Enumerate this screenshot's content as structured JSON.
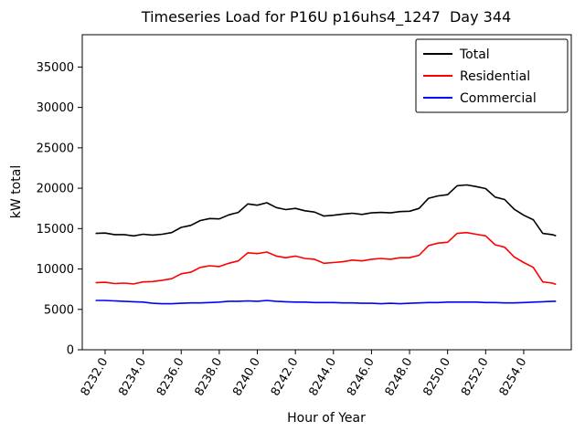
{
  "figure": {
    "background": "#ffffff",
    "axes_edge_color": "#000000"
  },
  "chart_data": {
    "type": "line",
    "title": "Timeseries Load for P16U p16uhs4_1247  Day 344",
    "xlabel": "Hour of Year",
    "ylabel": "kW total",
    "grid": false,
    "xlim": [
      8230.8,
      8256.5
    ],
    "ylim": [
      0,
      39000
    ],
    "x_ticks": [
      {
        "v": 8232,
        "label": "8232.0"
      },
      {
        "v": 8234,
        "label": "8234.0"
      },
      {
        "v": 8236,
        "label": "8236.0"
      },
      {
        "v": 8238,
        "label": "8238.0"
      },
      {
        "v": 8240,
        "label": "8240.0"
      },
      {
        "v": 8242,
        "label": "8242.0"
      },
      {
        "v": 8244,
        "label": "8244.0"
      },
      {
        "v": 8246,
        "label": "8246.0"
      },
      {
        "v": 8248,
        "label": "8248.0"
      },
      {
        "v": 8250,
        "label": "8250.0"
      },
      {
        "v": 8252,
        "label": "8252.0"
      },
      {
        "v": 8254,
        "label": "8254.0"
      }
    ],
    "y_ticks": [
      {
        "v": 0,
        "label": "0"
      },
      {
        "v": 5000,
        "label": "5000"
      },
      {
        "v": 10000,
        "label": "10000"
      },
      {
        "v": 15000,
        "label": "15000"
      },
      {
        "v": 20000,
        "label": "20000"
      },
      {
        "v": 25000,
        "label": "25000"
      },
      {
        "v": 30000,
        "label": "30000"
      },
      {
        "v": 35000,
        "label": "35000"
      }
    ],
    "legend": {
      "position": "upper right",
      "entries": [
        {
          "label": "Total",
          "color": "#000000"
        },
        {
          "label": "Residential",
          "color": "#ff0000"
        },
        {
          "label": "Commercial",
          "color": "#0000ff"
        }
      ]
    },
    "x": [
      8231.5,
      8232.0,
      8232.5,
      8233.0,
      8233.5,
      8234.0,
      8234.5,
      8235.0,
      8235.5,
      8236.0,
      8236.5,
      8237.0,
      8237.5,
      8238.0,
      8238.5,
      8239.0,
      8239.5,
      8240.0,
      8240.5,
      8241.0,
      8241.5,
      8242.0,
      8242.5,
      8243.0,
      8243.5,
      8244.0,
      8244.5,
      8245.0,
      8245.5,
      8246.0,
      8246.5,
      8247.0,
      8247.5,
      8248.0,
      8248.5,
      8249.0,
      8249.5,
      8250.0,
      8250.5,
      8251.0,
      8251.5,
      8252.0,
      8252.5,
      8253.0,
      8253.5,
      8254.0,
      8254.5,
      8255.0,
      8255.5,
      8255.7
    ],
    "series": [
      {
        "name": "Total",
        "color": "#000000",
        "values": [
          14400,
          14450,
          14250,
          14250,
          14100,
          14300,
          14200,
          14300,
          14500,
          15150,
          15400,
          16000,
          16250,
          16200,
          16700,
          17000,
          18050,
          17900,
          18200,
          17600,
          17350,
          17500,
          17200,
          17050,
          16550,
          16650,
          16800,
          16900,
          16750,
          16950,
          17000,
          16950,
          17100,
          17150,
          17500,
          18750,
          19050,
          19200,
          20300,
          20400,
          20200,
          19950,
          18900,
          18600,
          17400,
          16650,
          16100,
          14400,
          14250,
          14100
        ]
      },
      {
        "name": "Residential",
        "color": "#ff0000",
        "values": [
          8300,
          8350,
          8200,
          8250,
          8150,
          8400,
          8450,
          8600,
          8800,
          9400,
          9600,
          10200,
          10400,
          10300,
          10700,
          11000,
          12000,
          11900,
          12100,
          11600,
          11400,
          11600,
          11300,
          11200,
          10700,
          10800,
          10900,
          11100,
          11000,
          11200,
          11300,
          11200,
          11400,
          11400,
          11700,
          12900,
          13200,
          13300,
          14400,
          14500,
          14300,
          14100,
          13000,
          12700,
          11500,
          10800,
          10200,
          8400,
          8250,
          8100
        ]
      },
      {
        "name": "Commercial",
        "color": "#0000ff",
        "values": [
          6100,
          6100,
          6050,
          6000,
          5950,
          5900,
          5750,
          5700,
          5700,
          5750,
          5800,
          5800,
          5850,
          5900,
          6000,
          6000,
          6050,
          6000,
          6100,
          6000,
          5950,
          5900,
          5900,
          5850,
          5850,
          5850,
          5800,
          5800,
          5750,
          5750,
          5700,
          5750,
          5700,
          5750,
          5800,
          5850,
          5850,
          5900,
          5900,
          5900,
          5900,
          5850,
          5850,
          5800,
          5800,
          5850,
          5900,
          5950,
          6000,
          6000
        ]
      }
    ]
  }
}
